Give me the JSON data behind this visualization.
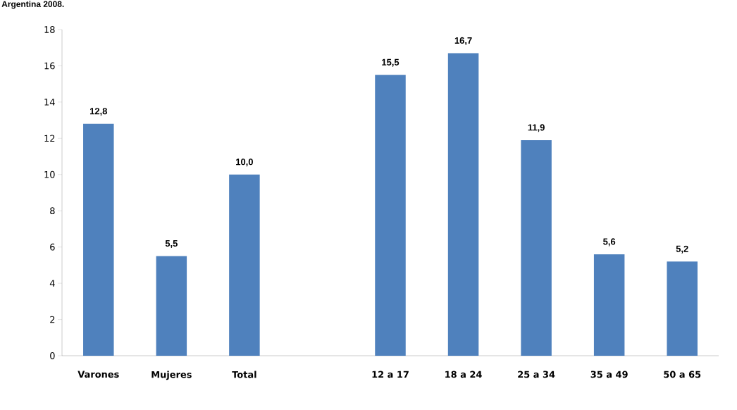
{
  "chart_data": {
    "type": "bar",
    "title": "Argentina 2008.",
    "categories": [
      "Varones",
      "Mujeres",
      "Total",
      null,
      "12 a 17",
      "18 a 24",
      "25 a 34",
      "35 a 49",
      "50 a 65"
    ],
    "values": [
      12.8,
      5.5,
      10.0,
      null,
      15.5,
      16.7,
      11.9,
      5.6,
      5.2
    ],
    "value_labels": [
      "12,8",
      "5,5",
      "10,0",
      null,
      "15,5",
      "16,7",
      "11,9",
      "5,6",
      "5,2"
    ],
    "color": "#4f81bd",
    "ylim": [
      0,
      18
    ],
    "yticks": [
      0,
      2,
      4,
      6,
      8,
      10,
      12,
      14,
      16,
      18
    ],
    "grid": false
  }
}
